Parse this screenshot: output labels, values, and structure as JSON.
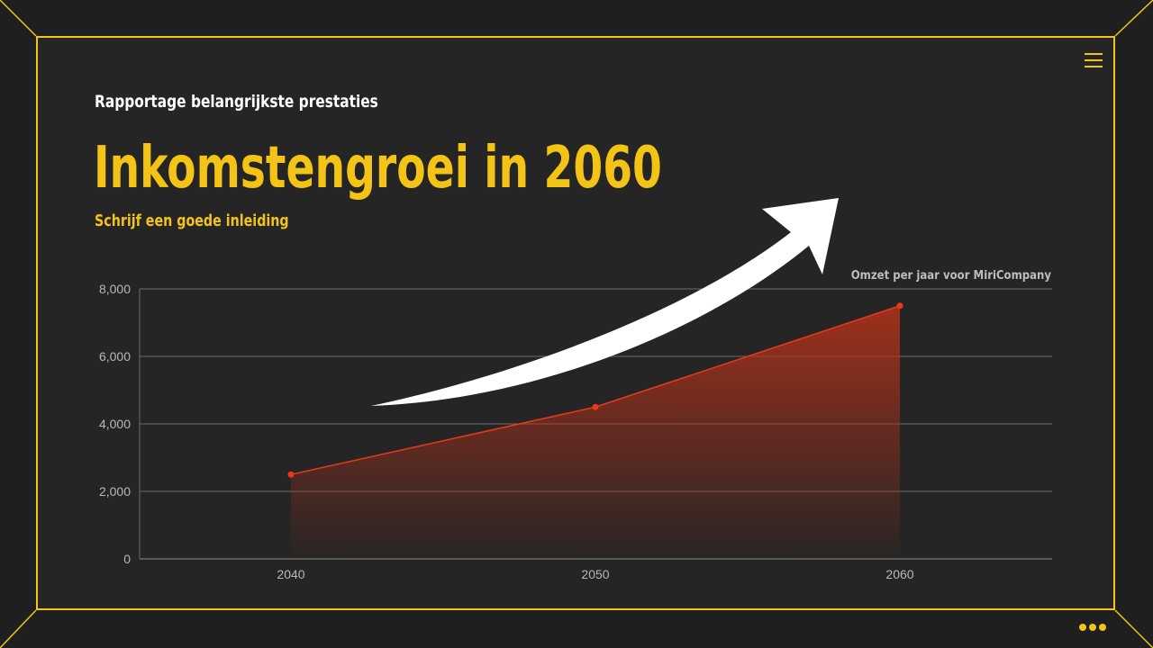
{
  "slide": {
    "kicker": "Rapportage belangrijkste prestaties",
    "title": "Inkomstengroei in 2060",
    "subtitle": "Schrijf een goede inleiding"
  },
  "icons": {
    "menu": "hamburger-menu-icon",
    "more": "more-dots-icon",
    "arrow": "growth-arrow-icon"
  },
  "colors": {
    "accent": "#f3c316",
    "series": "#e8391a",
    "background": "#252525"
  },
  "chart_data": {
    "type": "area",
    "categories": [
      "2040",
      "2050",
      "2060"
    ],
    "series": [
      {
        "name": "Omzet per jaar voor MiriCompany",
        "values": [
          2500,
          4500,
          7500
        ]
      }
    ],
    "ylim": [
      0,
      8000
    ],
    "yticks": [
      "0",
      "2,000",
      "4,000",
      "6,000",
      "8,000"
    ],
    "legend_position": "top-right",
    "grid": true
  }
}
